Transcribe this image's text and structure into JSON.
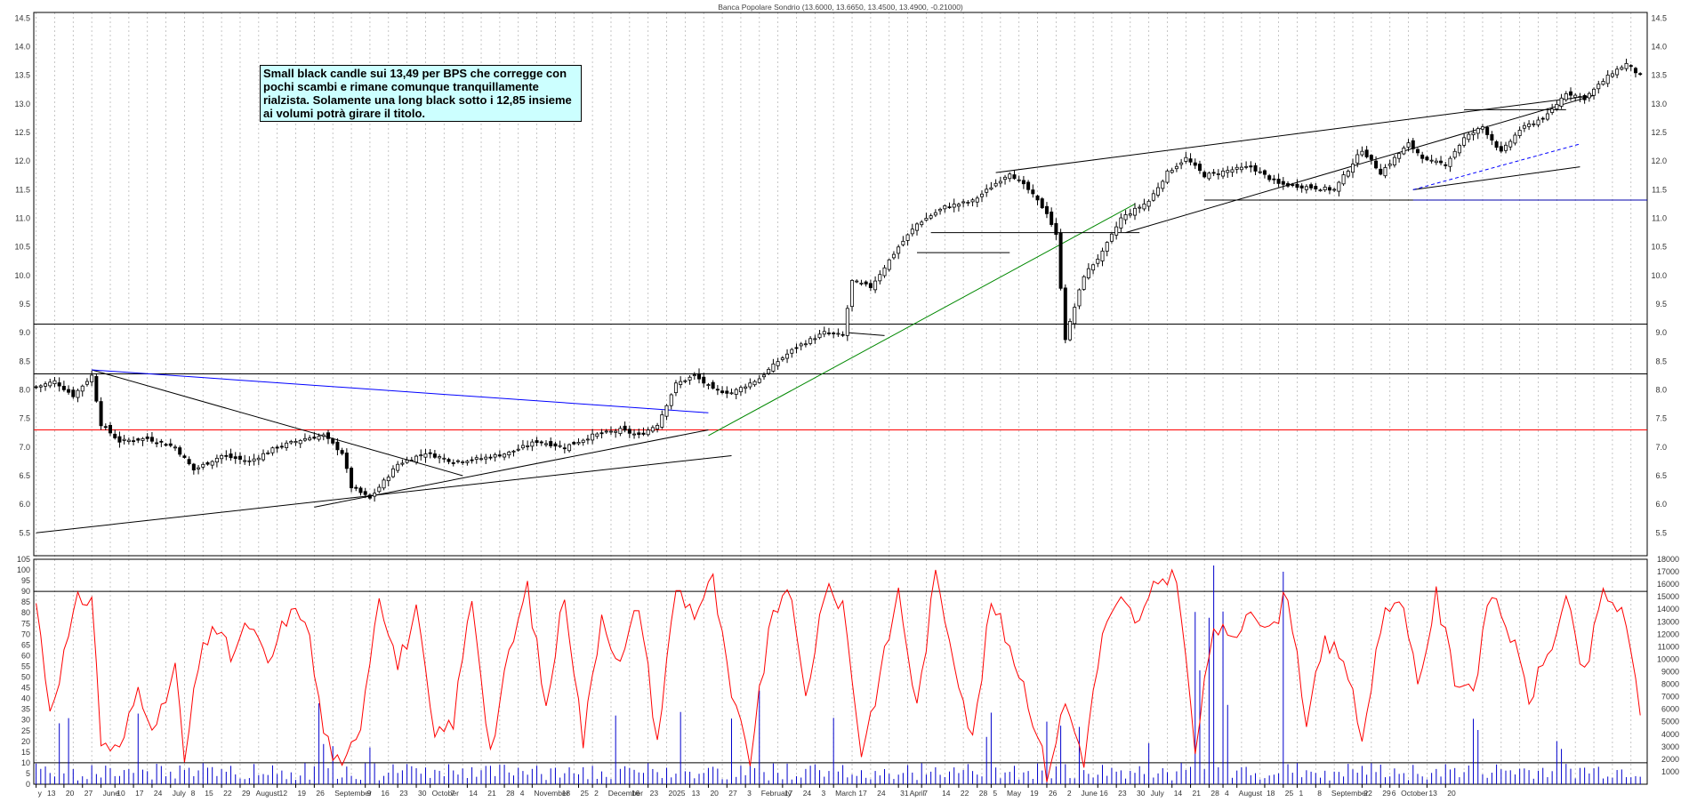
{
  "chart_data": {
    "type": "candlestick",
    "title": "Banca Popolare Sondrio (13.6000, 13.6650, 13.4500, 13.4900, -0.21000)",
    "annotation": "Small black candle sui 13,49 per BPS che corregge con pochi scambi e rimane comunque tranquillamente rialzista. Solamente una long black sotto i 12,85 insieme ai volumi potrà girare il titolo.",
    "price_panel": {
      "ylim": [
        5.1,
        14.6
      ],
      "yticks": [
        "5.5",
        "6.0",
        "6.5",
        "7.0",
        "7.5",
        "8.0",
        "8.5",
        "9.0",
        "9.5",
        "10.0",
        "10.5",
        "11.0",
        "11.5",
        "12.0",
        "12.5",
        "13.0",
        "13.5",
        "14.0",
        "14.5"
      ],
      "horizontal_levels": [
        {
          "value": 9.15,
          "color": "#000000"
        },
        {
          "value": 8.28,
          "color": "#000000"
        },
        {
          "value": 7.3,
          "color": "#ff0000"
        },
        {
          "value": 11.32,
          "color": "#0000aa"
        }
      ],
      "close_path": [
        [
          0,
          8.05
        ],
        [
          4,
          8.15
        ],
        [
          8,
          7.9
        ],
        [
          12,
          8.25
        ],
        [
          14,
          7.4
        ],
        [
          18,
          7.1
        ],
        [
          24,
          7.15
        ],
        [
          30,
          7.0
        ],
        [
          34,
          6.6
        ],
        [
          40,
          6.85
        ],
        [
          46,
          6.75
        ],
        [
          52,
          7.0
        ],
        [
          58,
          7.15
        ],
        [
          62,
          7.2
        ],
        [
          66,
          6.9
        ],
        [
          68,
          6.3
        ],
        [
          72,
          6.1
        ],
        [
          78,
          6.7
        ],
        [
          84,
          6.9
        ],
        [
          90,
          6.75
        ],
        [
          96,
          6.8
        ],
        [
          102,
          6.9
        ],
        [
          108,
          7.1
        ],
        [
          114,
          7.0
        ],
        [
          120,
          7.2
        ],
        [
          126,
          7.3
        ],
        [
          130,
          7.2
        ],
        [
          134,
          7.4
        ],
        [
          138,
          8.1
        ],
        [
          142,
          8.25
        ],
        [
          146,
          8.0
        ],
        [
          150,
          7.95
        ],
        [
          156,
          8.2
        ],
        [
          160,
          8.5
        ],
        [
          164,
          8.75
        ],
        [
          170,
          9.0
        ],
        [
          174,
          8.95
        ],
        [
          176,
          9.9
        ],
        [
          180,
          9.8
        ],
        [
          186,
          10.5
        ],
        [
          190,
          10.9
        ],
        [
          196,
          11.2
        ],
        [
          202,
          11.3
        ],
        [
          206,
          11.55
        ],
        [
          210,
          11.8
        ],
        [
          214,
          11.5
        ],
        [
          218,
          11.1
        ],
        [
          220,
          10.7
        ],
        [
          222,
          8.9
        ],
        [
          226,
          10.0
        ],
        [
          230,
          10.4
        ],
        [
          234,
          11.0
        ],
        [
          240,
          11.3
        ],
        [
          244,
          11.8
        ],
        [
          248,
          12.05
        ],
        [
          252,
          11.75
        ],
        [
          258,
          11.85
        ],
        [
          262,
          11.9
        ],
        [
          268,
          11.6
        ],
        [
          274,
          11.55
        ],
        [
          280,
          11.5
        ],
        [
          286,
          12.2
        ],
        [
          290,
          11.8
        ],
        [
          296,
          12.3
        ],
        [
          300,
          12.0
        ],
        [
          304,
          11.95
        ],
        [
          308,
          12.4
        ],
        [
          312,
          12.6
        ],
        [
          316,
          12.15
        ],
        [
          320,
          12.55
        ],
        [
          326,
          12.8
        ],
        [
          330,
          13.2
        ],
        [
          334,
          13.1
        ],
        [
          338,
          13.4
        ],
        [
          340,
          13.55
        ],
        [
          343,
          13.7
        ],
        [
          346,
          13.49
        ]
      ],
      "trendlines": [
        {
          "from": [
            0,
            5.5
          ],
          "to": [
            150,
            6.85
          ],
          "color": "#000000"
        },
        {
          "from": [
            12,
            8.35
          ],
          "to": [
            92,
            6.5
          ],
          "color": "#000000"
        },
        {
          "from": [
            12,
            8.35
          ],
          "to": [
            145,
            7.6
          ],
          "color": "#0000ff"
        },
        {
          "from": [
            60,
            5.95
          ],
          "to": [
            145,
            7.3
          ],
          "color": "#000000"
        },
        {
          "from": [
            145,
            7.2
          ],
          "to": [
            237,
            11.25
          ],
          "color": "#008800"
        },
        {
          "from": [
            175,
            9.0
          ],
          "to": [
            183,
            8.95
          ],
          "color": "#000000"
        },
        {
          "from": [
            190,
            10.4
          ],
          "to": [
            210,
            10.4
          ],
          "color": "#000000"
        },
        {
          "from": [
            193,
            10.75
          ],
          "to": [
            238,
            10.75
          ],
          "color": "#000000"
        },
        {
          "from": [
            235,
            10.75
          ],
          "to": [
            336,
            13.15
          ],
          "color": "#000000"
        },
        {
          "from": [
            207,
            11.8
          ],
          "to": [
            336,
            13.15
          ],
          "color": "#000000"
        },
        {
          "from": [
            252,
            11.32
          ],
          "to": [
            297,
            11.32
          ],
          "color": "#000000"
        },
        {
          "from": [
            297,
            11.5
          ],
          "to": [
            333,
            11.9
          ],
          "color": "#000000"
        },
        {
          "from": [
            297,
            11.5
          ],
          "to": [
            333,
            12.3
          ],
          "color": "#0000ff",
          "dashed": true
        },
        {
          "from": [
            308,
            12.9
          ],
          "to": [
            330,
            12.9
          ],
          "color": "#000000"
        }
      ]
    },
    "indicator_panel": {
      "ylim": [
        0,
        105
      ],
      "yticks": [
        "0",
        "5",
        "10",
        "15",
        "20",
        "25",
        "30",
        "35",
        "40",
        "45",
        "50",
        "55",
        "60",
        "65",
        "70",
        "75",
        "80",
        "85",
        "90",
        "95",
        "100",
        "105"
      ],
      "levels": [
        90,
        10
      ],
      "oscillator": [
        [
          0,
          85
        ],
        [
          3,
          35
        ],
        [
          6,
          60
        ],
        [
          9,
          85
        ],
        [
          12,
          88
        ],
        [
          14,
          20
        ],
        [
          18,
          15
        ],
        [
          22,
          45
        ],
        [
          26,
          25
        ],
        [
          30,
          55
        ],
        [
          32,
          10
        ],
        [
          35,
          55
        ],
        [
          38,
          75
        ],
        [
          42,
          60
        ],
        [
          46,
          75
        ],
        [
          50,
          55
        ],
        [
          54,
          78
        ],
        [
          58,
          80
        ],
        [
          62,
          25
        ],
        [
          66,
          5
        ],
        [
          70,
          30
        ],
        [
          74,
          90
        ],
        [
          78,
          55
        ],
        [
          82,
          80
        ],
        [
          86,
          20
        ],
        [
          90,
          30
        ],
        [
          94,
          88
        ],
        [
          98,
          15
        ],
        [
          102,
          60
        ],
        [
          106,
          92
        ],
        [
          110,
          35
        ],
        [
          114,
          90
        ],
        [
          118,
          20
        ],
        [
          122,
          80
        ],
        [
          126,
          55
        ],
        [
          130,
          85
        ],
        [
          134,
          20
        ],
        [
          138,
          92
        ],
        [
          142,
          80
        ],
        [
          146,
          95
        ],
        [
          150,
          40
        ],
        [
          154,
          12
        ],
        [
          158,
          70
        ],
        [
          162,
          95
        ],
        [
          166,
          40
        ],
        [
          170,
          90
        ],
        [
          174,
          85
        ],
        [
          178,
          15
        ],
        [
          182,
          50
        ],
        [
          186,
          90
        ],
        [
          190,
          35
        ],
        [
          194,
          98
        ],
        [
          198,
          60
        ],
        [
          202,
          20
        ],
        [
          206,
          85
        ],
        [
          210,
          65
        ],
        [
          214,
          40
        ],
        [
          218,
          5
        ],
        [
          222,
          38
        ],
        [
          226,
          12
        ],
        [
          230,
          70
        ],
        [
          234,
          85
        ],
        [
          238,
          75
        ],
        [
          242,
          95
        ],
        [
          246,
          99
        ],
        [
          250,
          15
        ],
        [
          254,
          75
        ],
        [
          258,
          65
        ],
        [
          262,
          85
        ],
        [
          266,
          70
        ],
        [
          270,
          90
        ],
        [
          274,
          30
        ],
        [
          278,
          65
        ],
        [
          282,
          60
        ],
        [
          286,
          20
        ],
        [
          290,
          75
        ],
        [
          294,
          90
        ],
        [
          298,
          45
        ],
        [
          302,
          88
        ],
        [
          306,
          50
        ],
        [
          310,
          45
        ],
        [
          314,
          90
        ],
        [
          318,
          70
        ],
        [
          322,
          40
        ],
        [
          326,
          60
        ],
        [
          330,
          85
        ],
        [
          334,
          50
        ],
        [
          338,
          90
        ],
        [
          342,
          80
        ],
        [
          344,
          60
        ],
        [
          346,
          35
        ]
      ]
    },
    "volume_axis": {
      "ylim": [
        0,
        18000
      ],
      "yticks": [
        "1000",
        "2000",
        "3000",
        "4000",
        "5000",
        "6000",
        "7000",
        "8000",
        "9000",
        "10000",
        "11000",
        "12000",
        "13000",
        "14000",
        "15000",
        "16000",
        "17000",
        "18000"
      ]
    },
    "x_axis": {
      "n_bars": 348,
      "labels": [
        {
          "i": 0,
          "text": "y"
        },
        {
          "i": 2,
          "text": "13"
        },
        {
          "i": 6,
          "text": "20"
        },
        {
          "i": 10,
          "text": "27"
        },
        {
          "i": 14,
          "text": "June"
        },
        {
          "i": 17,
          "text": "10"
        },
        {
          "i": 21,
          "text": "17"
        },
        {
          "i": 25,
          "text": "24"
        },
        {
          "i": 29,
          "text": "July"
        },
        {
          "i": 33,
          "text": "8"
        },
        {
          "i": 36,
          "text": "15"
        },
        {
          "i": 40,
          "text": "22"
        },
        {
          "i": 44,
          "text": "29"
        },
        {
          "i": 47,
          "text": "August"
        },
        {
          "i": 52,
          "text": "12"
        },
        {
          "i": 56,
          "text": "19"
        },
        {
          "i": 60,
          "text": "26"
        },
        {
          "i": 64,
          "text": "September"
        },
        {
          "i": 71,
          "text": "9"
        },
        {
          "i": 74,
          "text": "16"
        },
        {
          "i": 78,
          "text": "23"
        },
        {
          "i": 82,
          "text": "30"
        },
        {
          "i": 85,
          "text": "October"
        },
        {
          "i": 89,
          "text": "7"
        },
        {
          "i": 93,
          "text": "14"
        },
        {
          "i": 97,
          "text": "21"
        },
        {
          "i": 101,
          "text": "28"
        },
        {
          "i": 104,
          "text": "4"
        },
        {
          "i": 107,
          "text": "November"
        },
        {
          "i": 113,
          "text": "18"
        },
        {
          "i": 117,
          "text": "25"
        },
        {
          "i": 120,
          "text": "2"
        },
        {
          "i": 123,
          "text": "December"
        },
        {
          "i": 128,
          "text": "16"
        },
        {
          "i": 132,
          "text": "23"
        },
        {
          "i": 136,
          "text": "2025"
        },
        {
          "i": 141,
          "text": "13"
        },
        {
          "i": 145,
          "text": "20"
        },
        {
          "i": 149,
          "text": "27"
        },
        {
          "i": 153,
          "text": "3"
        },
        {
          "i": 156,
          "text": "February"
        },
        {
          "i": 161,
          "text": "17"
        },
        {
          "i": 165,
          "text": "24"
        },
        {
          "i": 169,
          "text": "3"
        },
        {
          "i": 172,
          "text": "March"
        },
        {
          "i": 177,
          "text": "17"
        },
        {
          "i": 181,
          "text": "24"
        },
        {
          "i": 186,
          "text": "31"
        },
        {
          "i": 188,
          "text": "April"
        },
        {
          "i": 191,
          "text": "7"
        },
        {
          "i": 195,
          "text": "14"
        },
        {
          "i": 199,
          "text": "22"
        },
        {
          "i": 203,
          "text": "28"
        },
        {
          "i": 206,
          "text": "5"
        },
        {
          "i": 209,
          "text": "May"
        },
        {
          "i": 214,
          "text": "19"
        },
        {
          "i": 218,
          "text": "26"
        },
        {
          "i": 222,
          "text": "2"
        },
        {
          "i": 225,
          "text": "June"
        },
        {
          "i": 229,
          "text": "16"
        },
        {
          "i": 233,
          "text": "23"
        },
        {
          "i": 237,
          "text": "30"
        },
        {
          "i": 240,
          "text": "July"
        },
        {
          "i": 245,
          "text": "14"
        },
        {
          "i": 249,
          "text": "21"
        },
        {
          "i": 253,
          "text": "28"
        },
        {
          "i": 256,
          "text": "4"
        },
        {
          "i": 259,
          "text": "August"
        },
        {
          "i": 265,
          "text": "18"
        },
        {
          "i": 269,
          "text": "25"
        },
        {
          "i": 272,
          "text": "1"
        },
        {
          "i": 276,
          "text": "8"
        },
        {
          "i": 279,
          "text": "September"
        },
        {
          "i": 286,
          "text": "22"
        },
        {
          "i": 290,
          "text": "29"
        },
        {
          "i": 292,
          "text": "6"
        },
        {
          "i": 294,
          "text": "October"
        },
        {
          "i": 300,
          "text": "13"
        },
        {
          "i": 304,
          "text": "20"
        }
      ]
    }
  }
}
